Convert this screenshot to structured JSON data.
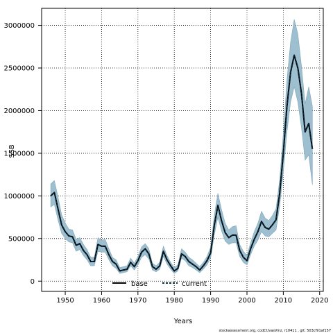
{
  "chart_data": {
    "type": "line",
    "xlabel": "Years",
    "ylabel": "SSB",
    "xlim": [
      1943.5,
      2021
    ],
    "ylim": [
      -120000,
      3200000
    ],
    "xticks": [
      1950,
      1960,
      1970,
      1980,
      1990,
      2000,
      2010,
      2020
    ],
    "yticks": [
      0,
      500000,
      1000000,
      1500000,
      2000000,
      2500000,
      3000000
    ],
    "xtick_labels": [
      "1950",
      "1960",
      "1970",
      "1980",
      "1990",
      "2000",
      "2010",
      "2020"
    ],
    "ytick_labels": [
      "0",
      "500000",
      "1000000",
      "1500000",
      "2000000",
      "2500000",
      "3000000"
    ],
    "grid": true,
    "legend_position": "bottom-left",
    "band_color": "#9dbfcf",
    "line_color": "#0d2a3a",
    "x": [
      1946,
      1947,
      1948,
      1949,
      1950,
      1951,
      1952,
      1953,
      1954,
      1955,
      1956,
      1957,
      1958,
      1959,
      1960,
      1961,
      1962,
      1963,
      1964,
      1965,
      1966,
      1967,
      1968,
      1969,
      1970,
      1971,
      1972,
      1973,
      1974,
      1975,
      1976,
      1977,
      1978,
      1979,
      1980,
      1981,
      1982,
      1983,
      1984,
      1985,
      1986,
      1987,
      1988,
      1989,
      1990,
      1991,
      1992,
      1993,
      1994,
      1995,
      1996,
      1997,
      1998,
      1999,
      2000,
      2001,
      2002,
      2003,
      2004,
      2005,
      2006,
      2007,
      2008,
      2009,
      2010,
      2011,
      2012,
      2013,
      2014,
      2015,
      2016,
      2017,
      2018
    ],
    "series": [
      {
        "name": "base",
        "values": [
          1000000,
          1040000,
          850000,
          660000,
          580000,
          530000,
          520000,
          420000,
          440000,
          360000,
          310000,
          230000,
          230000,
          430000,
          410000,
          410000,
          310000,
          230000,
          200000,
          120000,
          130000,
          140000,
          220000,
          170000,
          240000,
          340000,
          380000,
          320000,
          170000,
          140000,
          180000,
          350000,
          250000,
          180000,
          120000,
          150000,
          320000,
          290000,
          230000,
          200000,
          170000,
          130000,
          180000,
          240000,
          330000,
          650000,
          890000,
          710000,
          570000,
          510000,
          540000,
          540000,
          360000,
          280000,
          240000,
          380000,
          490000,
          580000,
          700000,
          630000,
          610000,
          660000,
          720000,
          1030000,
          1500000,
          2050000,
          2450000,
          2650000,
          2500000,
          2200000,
          1750000,
          1850000,
          1550000
        ]
      },
      {
        "name": "current",
        "values": [
          1000000,
          1040000,
          850000,
          660000,
          580000,
          530000,
          520000,
          420000,
          440000,
          360000,
          310000,
          230000,
          230000,
          430000,
          410000,
          410000,
          310000,
          230000,
          200000,
          120000,
          130000,
          140000,
          220000,
          170000,
          240000,
          340000,
          380000,
          320000,
          170000,
          140000,
          180000,
          350000,
          250000,
          180000,
          120000,
          150000,
          320000,
          290000,
          230000,
          200000,
          170000,
          130000,
          180000,
          240000,
          330000,
          650000,
          890000,
          710000,
          570000,
          510000,
          540000,
          540000,
          360000,
          280000,
          240000,
          380000,
          490000,
          580000,
          700000,
          630000,
          610000,
          660000,
          720000,
          1030000,
          1500000,
          2050000,
          2450000,
          2650000,
          2500000,
          2200000,
          1750000,
          1850000,
          1550000
        ]
      }
    ],
    "lower": [
      870000,
      900000,
      720000,
      560000,
      500000,
      460000,
      450000,
      350000,
      370000,
      300000,
      250000,
      180000,
      180000,
      350000,
      340000,
      340000,
      250000,
      180000,
      150000,
      90000,
      100000,
      110000,
      180000,
      130000,
      190000,
      280000,
      310000,
      260000,
      130000,
      110000,
      140000,
      290000,
      200000,
      140000,
      90000,
      120000,
      270000,
      240000,
      180000,
      160000,
      130000,
      100000,
      140000,
      190000,
      270000,
      540000,
      750000,
      590000,
      470000,
      430000,
      450000,
      450000,
      290000,
      220000,
      190000,
      310000,
      410000,
      480000,
      580000,
      530000,
      520000,
      560000,
      600000,
      880000,
      1280000,
      1750000,
      2100000,
      2280000,
      2100000,
      1800000,
      1420000,
      1480000,
      1130000
    ],
    "upper": [
      1140000,
      1180000,
      990000,
      780000,
      680000,
      610000,
      600000,
      490000,
      510000,
      430000,
      370000,
      280000,
      280000,
      510000,
      480000,
      490000,
      380000,
      280000,
      250000,
      160000,
      170000,
      180000,
      270000,
      210000,
      290000,
      400000,
      440000,
      380000,
      210000,
      180000,
      220000,
      410000,
      300000,
      220000,
      160000,
      190000,
      380000,
      340000,
      280000,
      250000,
      210000,
      170000,
      220000,
      290000,
      400000,
      770000,
      1030000,
      840000,
      680000,
      600000,
      640000,
      650000,
      430000,
      350000,
      300000,
      450000,
      580000,
      680000,
      820000,
      740000,
      710000,
      770000,
      850000,
      1190000,
      1730000,
      2360000,
      2800000,
      3070000,
      2900000,
      2520000,
      2080000,
      2280000,
      2050000
    ]
  },
  "legend": {
    "base_label": "base",
    "current_label": "current"
  },
  "footer": {
    "text": "stockassessment.org, codCUvasVinz, r10411 , git: 503cf91af157"
  }
}
